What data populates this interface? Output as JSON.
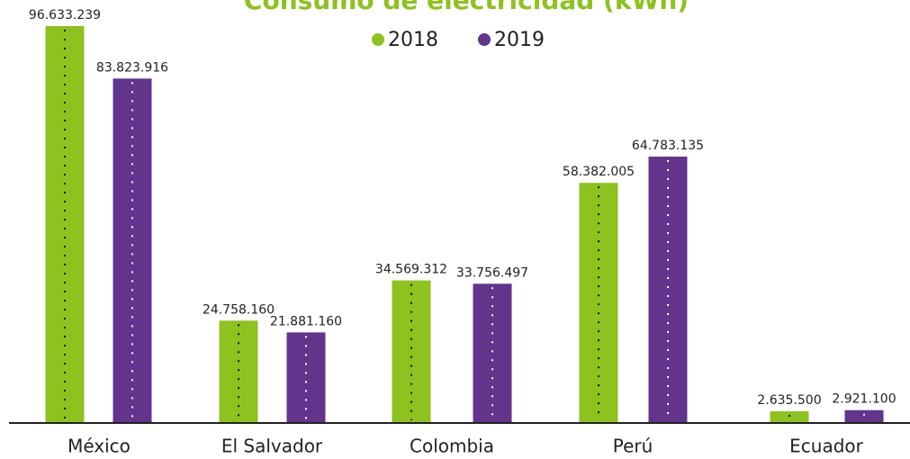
{
  "chart_data": {
    "type": "bar",
    "title": "Consumo de electricidad (kWh)",
    "categories": [
      "México",
      "El Salvador",
      "Colombia",
      "Perú",
      "Ecuador"
    ],
    "series": [
      {
        "name": "2018",
        "color": "#8dc21f",
        "values": [
          96633239,
          24758160,
          34569312,
          58382005,
          2635500
        ],
        "value_labels": [
          "96.633.239",
          "24.758.160",
          "34.569.312",
          "58.382.005",
          "2.635.500"
        ]
      },
      {
        "name": "2019",
        "color": "#62348c",
        "values": [
          83823916,
          21881160,
          33756497,
          64783135,
          2921100
        ],
        "value_labels": [
          "83.823.916",
          "21.881.160",
          "33.756.497",
          "64.783.135",
          "2.921.100"
        ]
      }
    ],
    "legend": "top"
  }
}
